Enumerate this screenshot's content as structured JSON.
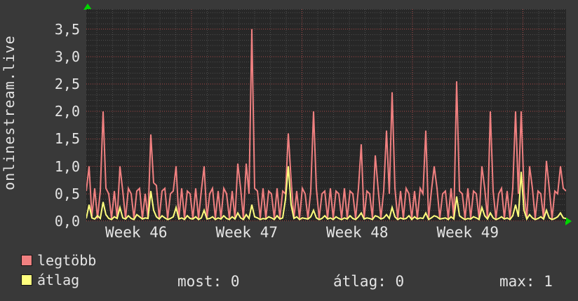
{
  "y_axis_title": "onlinestream.live",
  "colors": {
    "background": "#393939",
    "plot_background": "#272727",
    "text": "#e4e4e4",
    "arrow_green": "#00d400",
    "grid_minor": "#4c4c4c",
    "grid_major": "#a84848",
    "series_red": "#f08080",
    "series_yellow": "#ffff7e"
  },
  "chart_data": {
    "type": "line",
    "title": "",
    "xlabel": "",
    "ylabel": "onlinestream.live",
    "x_tick_labels": [
      "Week 46",
      "Week 47",
      "Week 48",
      "Week 49"
    ],
    "y_ticks": [
      {
        "label": "0,0",
        "value": 0
      },
      {
        "label": "0,5",
        "value": 0.5
      },
      {
        "label": "1,0",
        "value": 1.0
      },
      {
        "label": "1,5",
        "value": 1.5
      },
      {
        "label": "2,0",
        "value": 2.0
      },
      {
        "label": "2,5",
        "value": 2.5
      },
      {
        "label": "3,0",
        "value": 3.0
      },
      {
        "label": "3,5",
        "value": 3.5
      }
    ],
    "ylim": [
      0,
      3.865
    ],
    "grid": {
      "on": true,
      "style": "dotted",
      "h_minor_step": 0.1,
      "h_major_step": 0.5,
      "x_minor_unit": "day",
      "x_major_unit": "week",
      "color_minor": "#4c4c4c",
      "color_major": "#a84848"
    },
    "legend_position": "bottom-left",
    "series": [
      {
        "name": "legtöbb",
        "color": "#f08080",
        "values": [
          0.55,
          1.0,
          0.08,
          0.6,
          0.05,
          0.55,
          2.0,
          0.6,
          0.5,
          0.05,
          0.55,
          0.05,
          1.0,
          0.55,
          0.05,
          0.6,
          0.5,
          0.05,
          0.55,
          0.6,
          0.05,
          0.5,
          0.05,
          1.58,
          0.7,
          0.65,
          0.05,
          0.55,
          0.6,
          0.05,
          0.5,
          0.55,
          1.0,
          0.05,
          0.6,
          0.05,
          0.55,
          0.5,
          0.05,
          0.6,
          0.05,
          0.55,
          1.0,
          0.05,
          0.5,
          0.6,
          0.05,
          0.55,
          0.05,
          0.6,
          0.5,
          0.05,
          0.55,
          0.05,
          1.05,
          0.6,
          0.05,
          1.05,
          0.5,
          3.5,
          0.6,
          0.55,
          0.05,
          0.6,
          0.05,
          0.55,
          0.5,
          0.05,
          0.6,
          0.05,
          0.55,
          0.5,
          1.6,
          0.75,
          0.05,
          0.55,
          0.05,
          0.6,
          0.5,
          0.05,
          0.55,
          2.0,
          0.6,
          0.05,
          0.5,
          0.55,
          0.05,
          0.6,
          0.05,
          0.55,
          0.5,
          0.05,
          0.6,
          0.05,
          0.55,
          0.5,
          0.05,
          0.6,
          1.4,
          0.05,
          0.55,
          0.5,
          0.05,
          1.2,
          0.6,
          0.05,
          0.55,
          1.65,
          0.5,
          2.35,
          0.6,
          0.05,
          0.55,
          0.05,
          0.6,
          0.5,
          0.05,
          0.55,
          0.05,
          0.6,
          0.5,
          1.65,
          0.05,
          0.55,
          1.0,
          0.6,
          0.05,
          0.5,
          0.55,
          0.05,
          0.6,
          0.05,
          2.55,
          0.55,
          0.5,
          0.05,
          0.6,
          0.05,
          0.55,
          0.5,
          0.05,
          1.0,
          0.6,
          0.05,
          2.0,
          0.55,
          0.05,
          0.5,
          0.6,
          0.05,
          0.55,
          0.05,
          0.6,
          2.0,
          0.5,
          2.0,
          0.55,
          0.05,
          1.0,
          0.6,
          0.05,
          0.55,
          0.5,
          0.05,
          1.1,
          0.6,
          0.05,
          0.55,
          0.5,
          1.0,
          0.6,
          0.55
        ]
      },
      {
        "name": "átlag",
        "color": "#ffff7e",
        "values": [
          0.05,
          0.3,
          0.06,
          0.04,
          0.1,
          0.05,
          0.35,
          0.12,
          0.05,
          0.03,
          0.08,
          0.05,
          0.25,
          0.06,
          0.04,
          0.1,
          0.05,
          0.03,
          0.12,
          0.08,
          0.04,
          0.06,
          0.05,
          0.55,
          0.2,
          0.08,
          0.04,
          0.1,
          0.06,
          0.03,
          0.05,
          0.08,
          0.25,
          0.04,
          0.06,
          0.03,
          0.1,
          0.05,
          0.04,
          0.08,
          0.03,
          0.06,
          0.2,
          0.04,
          0.05,
          0.08,
          0.03,
          0.06,
          0.04,
          0.1,
          0.05,
          0.03,
          0.08,
          0.04,
          0.15,
          0.06,
          0.03,
          0.12,
          0.05,
          0.3,
          0.08,
          0.06,
          0.03,
          0.05,
          0.04,
          0.08,
          0.06,
          0.03,
          0.1,
          0.04,
          0.06,
          0.4,
          1.0,
          0.3,
          0.05,
          0.08,
          0.03,
          0.06,
          0.05,
          0.04,
          0.08,
          0.2,
          0.06,
          0.03,
          0.05,
          0.1,
          0.04,
          0.06,
          0.03,
          0.08,
          0.05,
          0.03,
          0.06,
          0.04,
          0.1,
          0.05,
          0.03,
          0.08,
          0.15,
          0.04,
          0.06,
          0.05,
          0.03,
          0.1,
          0.08,
          0.04,
          0.06,
          0.12,
          0.05,
          0.25,
          0.08,
          0.03,
          0.06,
          0.04,
          0.05,
          0.1,
          0.03,
          0.08,
          0.04,
          0.06,
          0.05,
          0.15,
          0.03,
          0.06,
          0.1,
          0.08,
          0.04,
          0.05,
          0.06,
          0.03,
          0.08,
          0.04,
          0.45,
          0.1,
          0.06,
          0.03,
          0.05,
          0.04,
          0.08,
          0.06,
          0.03,
          0.25,
          0.1,
          0.04,
          0.15,
          0.06,
          0.03,
          0.05,
          0.08,
          0.04,
          0.06,
          0.03,
          0.1,
          0.3,
          0.08,
          0.9,
          0.2,
          0.04,
          0.12,
          0.06,
          0.03,
          0.05,
          0.08,
          0.04,
          0.2,
          0.06,
          0.03,
          0.05,
          0.08,
          0.15,
          0.06,
          0.05
        ]
      }
    ]
  },
  "legend": {
    "items": [
      {
        "label": "legtöbb",
        "color": "#f08080"
      },
      {
        "label": "átlag",
        "color": "#ffff7e"
      }
    ]
  },
  "stats": [
    {
      "text": "most: 0"
    },
    {
      "text": "átlag: 0"
    },
    {
      "text": "max: 1"
    }
  ]
}
